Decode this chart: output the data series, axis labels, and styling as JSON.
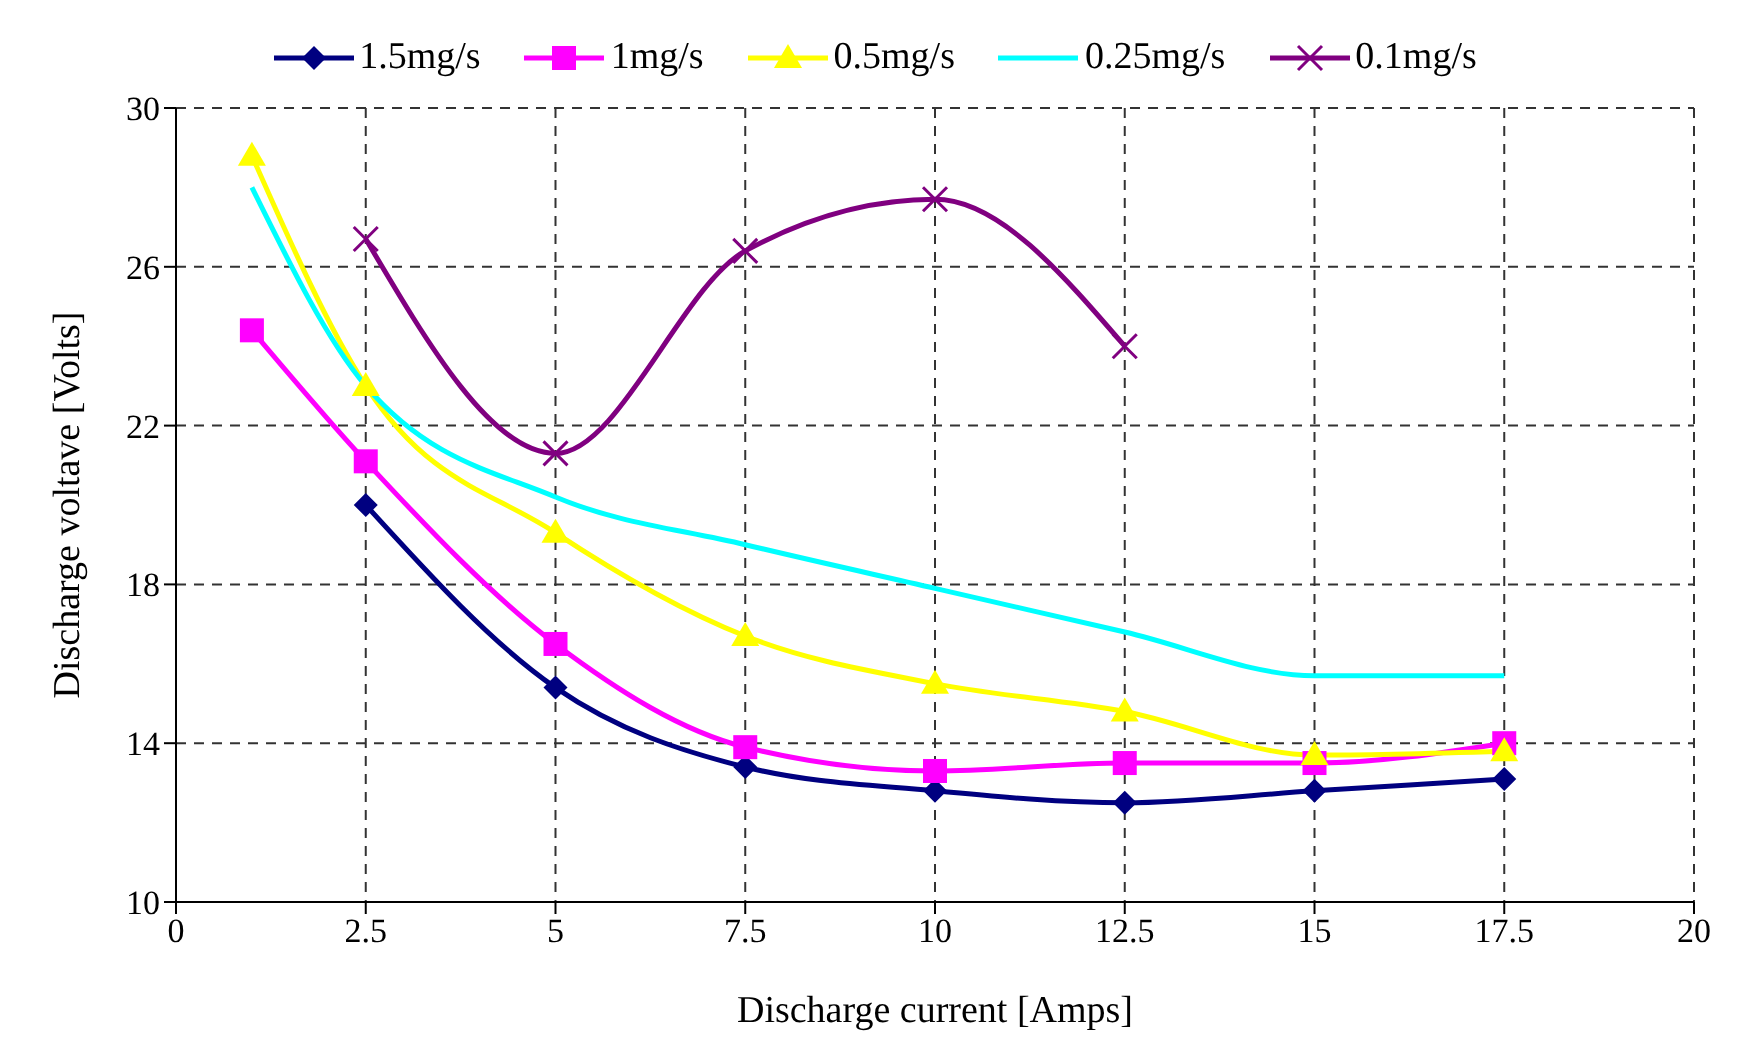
{
  "chart_data": {
    "type": "line",
    "xlabel": "Discharge current [Amps]",
    "ylabel": "Discharge voltave [Volts]",
    "xlim": [
      0,
      20
    ],
    "xticks": [
      0,
      2.5,
      5,
      7.5,
      10,
      12.5,
      15,
      17.5,
      20
    ],
    "ylim": [
      10,
      30
    ],
    "yticks": [
      10,
      14,
      18,
      22,
      26,
      30
    ],
    "grid": true,
    "legend": "top",
    "series": [
      {
        "name": "1.5mg/s",
        "color": "#000080",
        "marker": "diamond",
        "x": [
          2.5,
          5,
          7.5,
          10,
          12.5,
          15,
          17.5
        ],
        "values": [
          20.0,
          15.4,
          13.4,
          12.8,
          12.5,
          12.8,
          13.1
        ]
      },
      {
        "name": "1mg/s",
        "color": "#ff00ff",
        "marker": "square",
        "x": [
          1,
          2.5,
          5,
          7.5,
          10,
          12.5,
          15,
          17.5
        ],
        "values": [
          24.4,
          21.1,
          16.5,
          13.9,
          13.3,
          13.5,
          13.5,
          14.0
        ]
      },
      {
        "name": "0.5mg/s",
        "color": "#ffff00",
        "marker": "triangle",
        "x": [
          1,
          2.5,
          5,
          7.5,
          10,
          12.5,
          15,
          17.5
        ],
        "values": [
          28.8,
          23.0,
          19.3,
          16.7,
          15.5,
          14.8,
          13.7,
          13.8
        ]
      },
      {
        "name": "0.25mg/s",
        "color": "#00ffff",
        "marker": "none",
        "x": [
          1,
          2.5,
          5,
          7.5,
          10,
          12.5,
          15,
          17.5
        ],
        "values": [
          28.0,
          23.0,
          20.2,
          19.0,
          17.9,
          16.8,
          15.7,
          15.7
        ]
      },
      {
        "name": "0.1mg/s",
        "color": "#800080",
        "marker": "cross",
        "x": [
          2.5,
          5,
          7.5,
          10,
          12.5
        ],
        "values": [
          26.7,
          21.3,
          26.4,
          27.7,
          24.0
        ]
      }
    ]
  }
}
